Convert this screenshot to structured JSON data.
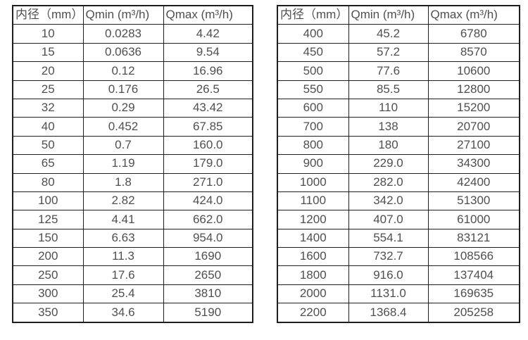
{
  "page": {
    "background_color": "#ffffff",
    "text_color": "#4f4f4f",
    "border_color": "#1e1e1e"
  },
  "chart_data": [
    {
      "type": "table",
      "columns": [
        "内径（mm）",
        "Qmin (m³/h)",
        "Qmax (m³/h)"
      ],
      "rows": [
        [
          "10",
          "0.0283",
          "4.42"
        ],
        [
          "15",
          "0.0636",
          "9.54"
        ],
        [
          "20",
          "0.12",
          "16.96"
        ],
        [
          "25",
          "0.176",
          "26.5"
        ],
        [
          "32",
          "0.29",
          "43.42"
        ],
        [
          "40",
          "0.452",
          "67.85"
        ],
        [
          "50",
          "0.7",
          "160.0"
        ],
        [
          "65",
          "1.19",
          "179.0"
        ],
        [
          "80",
          "1.8",
          "271.0"
        ],
        [
          "100",
          "2.82",
          "424.0"
        ],
        [
          "125",
          "4.41",
          "662.0"
        ],
        [
          "150",
          "6.63",
          "954.0"
        ],
        [
          "200",
          "11.3",
          "1690"
        ],
        [
          "250",
          "17.6",
          "2650"
        ],
        [
          "300",
          "25.4",
          "3810"
        ],
        [
          "350",
          "34.6",
          "5190"
        ]
      ]
    },
    {
      "type": "table",
      "columns": [
        "内径（mm）",
        "Qmin (m³/h)",
        "Qmax (m³/h)"
      ],
      "rows": [
        [
          "400",
          "45.2",
          "6780"
        ],
        [
          "450",
          "57.2",
          "8570"
        ],
        [
          "500",
          "77.6",
          "10600"
        ],
        [
          "550",
          "85.5",
          "12800"
        ],
        [
          "600",
          "110",
          "15200"
        ],
        [
          "700",
          "138",
          "20700"
        ],
        [
          "800",
          "180",
          "27100"
        ],
        [
          "900",
          "229.0",
          "34300"
        ],
        [
          "1000",
          "282.0",
          "42400"
        ],
        [
          "1100",
          "342.0",
          "51300"
        ],
        [
          "1200",
          "407.0",
          "61000"
        ],
        [
          "1400",
          "554.1",
          "83121"
        ],
        [
          "1600",
          "732.7",
          "108566"
        ],
        [
          "1800",
          "916.0",
          "137404"
        ],
        [
          "2000",
          "1131.0",
          "169635"
        ],
        [
          "2200",
          "1368.4",
          "205258"
        ]
      ]
    }
  ]
}
